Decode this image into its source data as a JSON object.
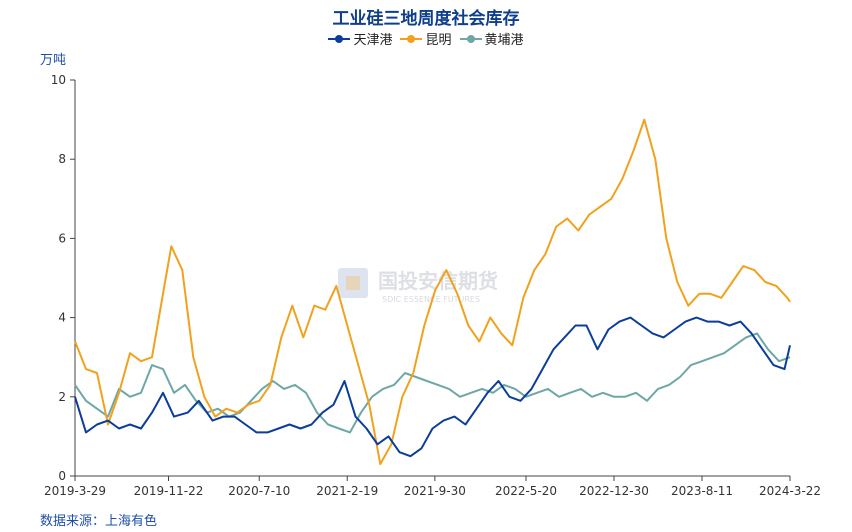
{
  "chart_data": {
    "type": "line",
    "title": "工业硅三地周度社会库存",
    "ylabel": "万吨",
    "ylim": [
      0,
      10
    ],
    "yticks": [
      "0",
      "2",
      "4",
      "6",
      "8",
      "10"
    ],
    "xticks": [
      "2019-3-29",
      "2019-11-22",
      "2020-7-10",
      "2021-2-19",
      "2021-9-30",
      "2022-5-20",
      "2022-12-30",
      "2023-8-11",
      "2024-3-22"
    ],
    "x_range": [
      "2019-3-29",
      "2024-3-22"
    ],
    "grid": false,
    "legend_position": "top-center",
    "series": [
      {
        "name": "天津港",
        "color": "#0c3e99",
        "x": [
          "2019-3-29",
          "2019-4-26",
          "2019-5-24",
          "2019-6-21",
          "2019-7-19",
          "2019-8-16",
          "2019-9-13",
          "2019-10-11",
          "2019-11-8",
          "2019-12-6",
          "2020-1-10",
          "2020-2-7",
          "2020-3-13",
          "2020-4-10",
          "2020-5-8",
          "2020-6-5",
          "2020-7-3",
          "2020-7-31",
          "2020-8-28",
          "2020-9-25",
          "2020-10-23",
          "2020-11-20",
          "2020-12-18",
          "2021-1-15",
          "2021-2-12",
          "2021-3-12",
          "2021-4-9",
          "2021-5-7",
          "2021-6-4",
          "2021-7-2",
          "2021-7-30",
          "2021-8-27",
          "2021-9-24",
          "2021-10-22",
          "2021-11-19",
          "2021-12-17",
          "2022-1-14",
          "2022-2-11",
          "2022-3-11",
          "2022-4-8",
          "2022-5-6",
          "2022-6-3",
          "2022-7-1",
          "2022-7-29",
          "2022-8-26",
          "2022-9-23",
          "2022-10-21",
          "2022-11-18",
          "2022-12-16",
          "2023-1-13",
          "2023-2-10",
          "2023-3-10",
          "2023-4-7",
          "2023-5-5",
          "2023-6-2",
          "2023-6-30",
          "2023-7-28",
          "2023-8-25",
          "2023-9-22",
          "2023-10-20",
          "2023-11-17",
          "2023-12-15",
          "2024-1-12",
          "2024-2-9",
          "2024-3-8",
          "2024-3-22"
        ],
        "values": [
          2.0,
          1.1,
          1.3,
          1.4,
          1.2,
          1.3,
          1.2,
          1.6,
          2.1,
          1.5,
          1.6,
          1.9,
          1.4,
          1.5,
          1.5,
          1.3,
          1.1,
          1.1,
          1.2,
          1.3,
          1.2,
          1.3,
          1.6,
          1.8,
          2.4,
          1.5,
          1.2,
          0.8,
          1.0,
          0.6,
          0.5,
          0.7,
          1.2,
          1.4,
          1.5,
          1.3,
          1.7,
          2.1,
          2.4,
          2.0,
          1.9,
          2.2,
          2.7,
          3.2,
          3.5,
          3.8,
          3.8,
          3.2,
          3.7,
          3.9,
          4.0,
          3.8,
          3.6,
          3.5,
          3.7,
          3.9,
          4.0,
          3.9,
          3.9,
          3.8,
          3.9,
          3.6,
          3.2,
          2.8,
          2.7,
          3.3
        ]
      },
      {
        "name": "昆明",
        "color": "#f0a21f",
        "x": [
          "2019-3-29",
          "2019-4-26",
          "2019-5-24",
          "2019-6-21",
          "2019-7-19",
          "2019-8-16",
          "2019-9-13",
          "2019-10-11",
          "2019-11-8",
          "2019-11-29",
          "2019-12-27",
          "2020-1-24",
          "2020-2-21",
          "2020-3-20",
          "2020-4-17",
          "2020-5-15",
          "2020-6-12",
          "2020-7-10",
          "2020-8-7",
          "2020-9-4",
          "2020-10-2",
          "2020-10-30",
          "2020-11-27",
          "2020-12-25",
          "2021-1-22",
          "2021-2-19",
          "2021-3-19",
          "2021-4-16",
          "2021-5-14",
          "2021-6-11",
          "2021-7-9",
          "2021-8-6",
          "2021-9-3",
          "2021-10-1",
          "2021-10-29",
          "2021-11-26",
          "2021-12-24",
          "2022-1-21",
          "2022-2-18",
          "2022-3-18",
          "2022-4-15",
          "2022-5-13",
          "2022-6-10",
          "2022-7-8",
          "2022-8-5",
          "2022-9-2",
          "2022-9-30",
          "2022-10-28",
          "2022-11-25",
          "2022-12-23",
          "2023-1-20",
          "2023-2-17",
          "2023-3-17",
          "2023-4-14",
          "2023-5-12",
          "2023-6-9",
          "2023-7-7",
          "2023-8-4",
          "2023-9-1",
          "2023-9-29",
          "2023-10-27",
          "2023-11-24",
          "2023-12-22",
          "2024-1-19",
          "2024-2-16",
          "2024-3-15",
          "2024-3-22"
        ],
        "values": [
          3.4,
          2.7,
          2.6,
          1.3,
          2.1,
          3.1,
          2.9,
          3.0,
          4.6,
          5.8,
          5.2,
          3.0,
          2.0,
          1.5,
          1.7,
          1.6,
          1.8,
          1.9,
          2.3,
          3.5,
          4.3,
          3.5,
          4.3,
          4.2,
          4.8,
          3.8,
          2.8,
          1.8,
          0.3,
          0.8,
          2.0,
          2.6,
          3.8,
          4.7,
          5.2,
          4.6,
          3.8,
          3.4,
          4.0,
          3.6,
          3.3,
          4.5,
          5.2,
          5.6,
          6.3,
          6.5,
          6.2,
          6.6,
          6.8,
          7.0,
          7.5,
          8.2,
          9.0,
          8.0,
          6.0,
          4.9,
          4.3,
          4.6,
          4.6,
          4.5,
          4.9,
          5.3,
          5.2,
          4.9,
          4.8,
          4.5,
          4.4
        ]
      },
      {
        "name": "黄埔港",
        "color": "#6fa7a6",
        "x": [
          "2019-3-29",
          "2019-4-26",
          "2019-5-24",
          "2019-6-21",
          "2019-7-19",
          "2019-8-16",
          "2019-9-13",
          "2019-10-11",
          "2019-11-8",
          "2019-12-6",
          "2020-1-3",
          "2020-1-31",
          "2020-2-28",
          "2020-3-27",
          "2020-4-24",
          "2020-5-22",
          "2020-6-19",
          "2020-7-17",
          "2020-8-14",
          "2020-9-11",
          "2020-10-9",
          "2020-11-6",
          "2020-12-4",
          "2021-1-1",
          "2021-1-29",
          "2021-2-26",
          "2021-3-26",
          "2021-4-23",
          "2021-5-21",
          "2021-6-18",
          "2021-7-16",
          "2021-8-13",
          "2021-9-10",
          "2021-10-8",
          "2021-11-5",
          "2021-12-3",
          "2021-12-31",
          "2022-1-28",
          "2022-2-25",
          "2022-3-25",
          "2022-4-22",
          "2022-5-20",
          "2022-6-17",
          "2022-7-15",
          "2022-8-12",
          "2022-9-9",
          "2022-10-7",
          "2022-11-4",
          "2022-12-2",
          "2022-12-30",
          "2023-1-27",
          "2023-2-24",
          "2023-3-24",
          "2023-4-21",
          "2023-5-19",
          "2023-6-16",
          "2023-7-14",
          "2023-8-11",
          "2023-9-8",
          "2023-10-6",
          "2023-11-3",
          "2023-12-1",
          "2023-12-29",
          "2024-1-26",
          "2024-2-23",
          "2024-3-22"
        ],
        "values": [
          2.3,
          1.9,
          1.7,
          1.5,
          2.2,
          2.0,
          2.1,
          2.8,
          2.7,
          2.1,
          2.3,
          1.9,
          1.6,
          1.7,
          1.5,
          1.6,
          1.9,
          2.2,
          2.4,
          2.2,
          2.3,
          2.1,
          1.6,
          1.3,
          1.2,
          1.1,
          1.6,
          2.0,
          2.2,
          2.3,
          2.6,
          2.5,
          2.4,
          2.3,
          2.2,
          2.0,
          2.1,
          2.2,
          2.1,
          2.3,
          2.2,
          2.0,
          2.1,
          2.2,
          2.0,
          2.1,
          2.2,
          2.0,
          2.1,
          2.0,
          2.0,
          2.1,
          1.9,
          2.2,
          2.3,
          2.5,
          2.8,
          2.9,
          3.0,
          3.1,
          3.3,
          3.5,
          3.6,
          3.2,
          2.9,
          3.0
        ]
      }
    ]
  },
  "watermark": {
    "text": "国投安信期货",
    "subtext": "SDIC ESSENCE FUTURES"
  },
  "source_text": "数据来源：上海有色"
}
